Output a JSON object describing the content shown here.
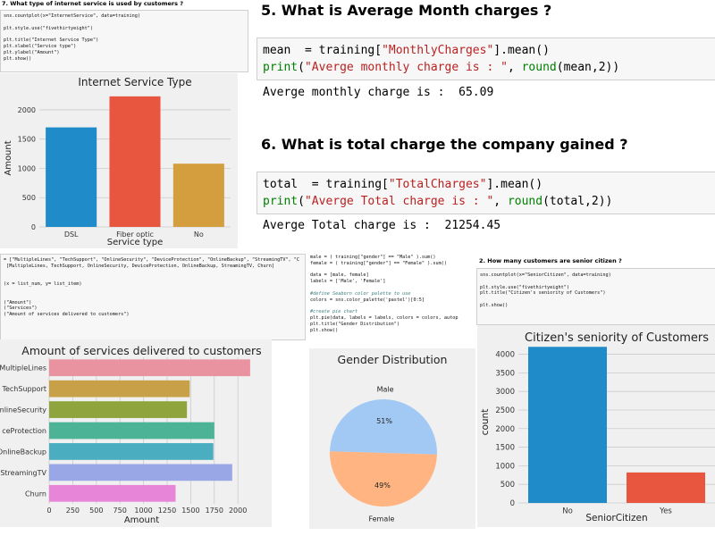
{
  "cell7": {
    "question": "7. What type of internet service is used by customers ?",
    "code": [
      "sns.countplot(x=\"InternetService\", data=training)",
      "",
      "plt.style.use(\"fivethirtyeight\")",
      "",
      "plt.title(\"Internet Service Type\")",
      "plt.xlabel(\"Service type\")",
      "plt.ylabel(\"Amount\")",
      "plt.show()"
    ]
  },
  "cell5": {
    "question": "5. What is Average Month charges ?",
    "code_line1_var": "mean",
    "code_line1_mid": "  = training[",
    "code_line1_str": "\"MonthlyCharges\"",
    "code_line1_end": "].mean()",
    "code_line2_fn": "print",
    "code_line2_str": "\"Averge monthly charge is : \"",
    "code_line2_mid": ", ",
    "code_line2_fn2": "round",
    "code_line2_end": "(mean,2))",
    "output": "Averge monthly charge is :  65.09"
  },
  "cell6": {
    "question": "6. What is total charge the company gained ?",
    "code_line1_var": "total",
    "code_line1_mid": "  = training[",
    "code_line1_str": "\"TotalCharges\"",
    "code_line1_end": "].mean()",
    "code_line2_fn": "print",
    "code_line2_str": "\"Averge Total charge is : \"",
    "code_line2_mid": ", ",
    "code_line2_fn2": "round",
    "code_line2_end": "(total,2))",
    "output": "Averge Total charge is :  21254.45"
  },
  "cell_services": {
    "code": [
      "= [\"MultipleLines\", \"TechSupport\", \"OnlineSecurity\", \"DeviceProtection\", \"OnlineBackup\", \"StreamingTV\", \"C",
      " [MultipleLines, TechSupport, OnlineSecurity, DeviceProtection, OnlineBackup, StreamingTV, Churn]",
      "",
      "",
      "(x = list_num, y= list_item)",
      "",
      "",
      "(\"Amount\")",
      "(\"Services\")",
      "(\"Amount of services delivered to customers\")"
    ]
  },
  "cell_gender": {
    "code": [
      "male = ( training[\"gender\"] == \"Male\" ).sum()",
      "female = ( training[\"gender\"] == \"Female\" ).sum()",
      "",
      "data = [male, female]",
      "labels = ['Male', 'Female']",
      "",
      "#define Seaborn color palette to use",
      "colors = sns.color_palette('pastel')[0:5]",
      "",
      "#create pie chart",
      "plt.pie(data, labels = labels, colors = colors, autop",
      "plt.title(\"Gender Distribution\")",
      "plt.show()"
    ]
  },
  "cell2": {
    "question": "2. How many customers are senior citizen ?",
    "code": [
      "sns.countplot(x=\"SeniorCitizen\", data=training)",
      "",
      "plt.style.use(\"fivethirtyeight\")",
      "plt.title(\"Citizen's seniority of Customers\")",
      "",
      "plt.show()"
    ]
  },
  "chart_data": [
    {
      "type": "bar",
      "title": "Internet Service Type",
      "xlabel": "Service type",
      "ylabel": "Amount",
      "categories": [
        "DSL",
        "Fiber optic",
        "No"
      ],
      "values": [
        1700,
        2230,
        1080
      ],
      "colors": [
        "#1f8bc9",
        "#e8563f",
        "#d49e3e"
      ],
      "ylim": [
        0,
        2350
      ],
      "yticks": [
        0,
        500,
        1000,
        1500,
        2000
      ],
      "grid": true
    },
    {
      "type": "bar",
      "orientation": "horizontal",
      "title": "Amount of services delivered to customers",
      "xlabel": "Amount",
      "ylabel": "",
      "categories": [
        "MultipleLines",
        "TechSupport",
        "OnlineSecurity",
        "DeviceProtection",
        "OnlineBackup",
        "StreamingTV",
        "Churn"
      ],
      "category_labels": [
        "MultipleLines",
        "TechSupport",
        "nlineSecurity",
        "ceProtection",
        "OnlineBackup",
        "StreamingTV",
        "Churn"
      ],
      "values": [
        2130,
        1490,
        1460,
        1750,
        1740,
        1940,
        1340
      ],
      "colors": [
        "#e8939f",
        "#c8a047",
        "#8fa43c",
        "#4db396",
        "#4aaec0",
        "#9aa7e6",
        "#e786d9"
      ],
      "xlim": [
        0,
        2150
      ],
      "xticks": [
        0,
        250,
        500,
        750,
        1000,
        1250,
        1500,
        1750,
        2000
      ],
      "grid": true
    },
    {
      "type": "pie",
      "title": "Gender Distribution",
      "labels": [
        "Male",
        "Female"
      ],
      "values": [
        51,
        49
      ],
      "pct_labels": [
        "51%",
        "49%"
      ],
      "colors": [
        "#a1c9f4",
        "#ffb482"
      ]
    },
    {
      "type": "bar",
      "title": "Citizen's seniority of Customers",
      "xlabel": "SeniorCitizen",
      "ylabel": "count",
      "categories": [
        "No",
        "Yes"
      ],
      "values": [
        4200,
        820
      ],
      "colors": [
        "#1f8bc9",
        "#e8563f"
      ],
      "ylim": [
        0,
        4350
      ],
      "yticks": [
        0,
        500,
        1000,
        1500,
        2000,
        2500,
        3000,
        3500,
        4000
      ],
      "grid": true
    }
  ]
}
